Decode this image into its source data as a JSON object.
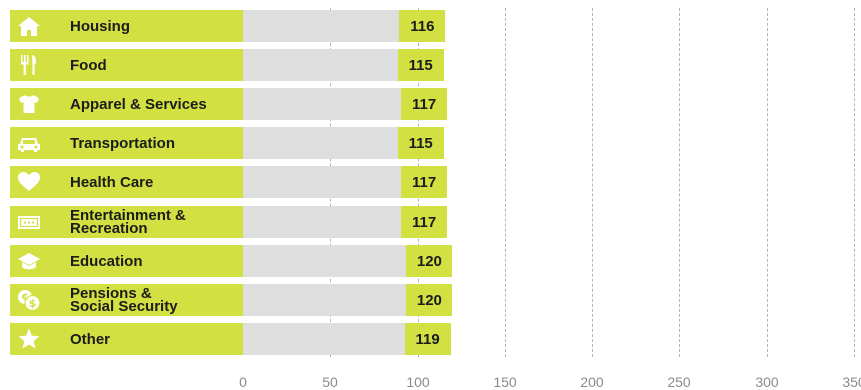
{
  "chart_data": {
    "type": "bar",
    "orientation": "horizontal",
    "categories": [
      "Housing",
      "Food",
      "Apparel & Services",
      "Transportation",
      "Health Care",
      "Entertainment &\nRecreation",
      "Education",
      "Pensions &\nSocial Security",
      "Other"
    ],
    "values": [
      116,
      115,
      117,
      115,
      117,
      117,
      120,
      120,
      119
    ],
    "icons": [
      "house-icon",
      "utensils-icon",
      "shirt-icon",
      "car-icon",
      "heart-icon",
      "ticket-icon",
      "graduation-cap-icon",
      "money-coins-icon",
      "star-icon"
    ],
    "xlim": [
      0,
      350
    ],
    "x_ticks": [
      0,
      50,
      100,
      150,
      200,
      250,
      300,
      350
    ],
    "reference_line": 100,
    "grid": "vertical dashed",
    "title": "",
    "xlabel": "",
    "ylabel": ""
  },
  "colors": {
    "bar": "#d2e041",
    "track": "#dedede",
    "text": "#1c1c1c",
    "tick": "#8a8a8a",
    "grid": "#b5b5b5"
  }
}
